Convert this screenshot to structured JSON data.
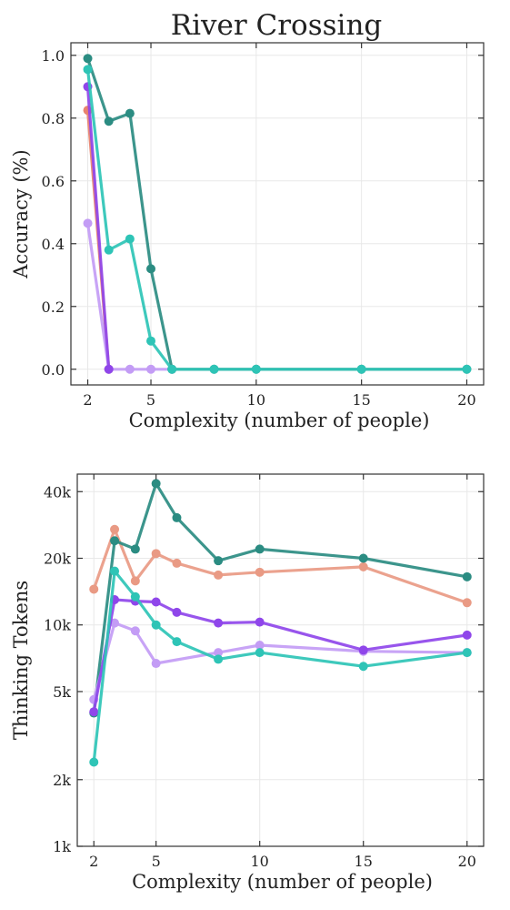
{
  "title": "River Crossing",
  "chart_data": [
    {
      "type": "line",
      "title": "River Crossing",
      "xlabel": "Complexity (number of people)",
      "ylabel": "Accuracy (%)",
      "xlim": [
        1.2,
        20.8
      ],
      "ylim": [
        -0.05,
        1.04
      ],
      "xticks": [
        2,
        5,
        10,
        15,
        20
      ],
      "yticks": [
        0.0,
        0.2,
        0.4,
        0.6,
        0.8,
        1.0
      ],
      "ytick_labels": [
        "0.0",
        "0.2",
        "0.4",
        "0.6",
        "0.8",
        "1.0"
      ],
      "grid": true,
      "series": [
        {
          "color": "#e8826f",
          "x": [
            2,
            3
          ],
          "y": [
            0.825,
            0.0
          ]
        },
        {
          "color": "#c39cf5",
          "x": [
            2,
            3,
            4,
            5,
            6
          ],
          "y": [
            0.465,
            0.0,
            0.0,
            0.0,
            0.0
          ]
        },
        {
          "color": "#8f46ea",
          "x": [
            2,
            3
          ],
          "y": [
            0.9,
            0.0
          ]
        },
        {
          "color": "#2b8c82",
          "x": [
            2,
            3,
            4,
            5,
            6,
            8,
            10,
            15,
            20
          ],
          "y": [
            0.99,
            0.79,
            0.815,
            0.32,
            0.0,
            0.0,
            0.0,
            0.0,
            0.0
          ]
        },
        {
          "color": "#2ec4b6",
          "x": [
            2,
            3,
            4,
            5,
            6,
            8,
            10,
            15,
            20
          ],
          "y": [
            0.955,
            0.38,
            0.415,
            0.09,
            0.0,
            0.0,
            0.0,
            0.0,
            0.0
          ]
        }
      ]
    },
    {
      "type": "line",
      "xlabel": "Complexity (number of people)",
      "ylabel": "Thinking Tokens",
      "yscale": "log",
      "xlim": [
        1.2,
        20.8
      ],
      "ylim": [
        1000,
        48000
      ],
      "xticks": [
        2,
        5,
        10,
        15,
        20
      ],
      "yticks": [
        1000,
        2000,
        5000,
        10000,
        20000,
        40000
      ],
      "ytick_labels": [
        "1k",
        "2k",
        "5k",
        "10k",
        "20k",
        "40k"
      ],
      "grid": true,
      "series": [
        {
          "color": "#e99a84",
          "x": [
            2,
            3,
            4,
            5,
            6,
            8,
            10,
            15,
            20
          ],
          "y": [
            14500,
            27000,
            15800,
            21000,
            19000,
            16800,
            17300,
            18300,
            12600
          ]
        },
        {
          "color": "#2b8c82",
          "x": [
            2,
            3,
            4,
            5,
            6,
            8,
            10,
            15,
            20
          ],
          "y": [
            4000,
            24000,
            22000,
            43500,
            30500,
            19500,
            22000,
            20000,
            16500
          ]
        },
        {
          "color": "#c39cf5",
          "x": [
            2,
            3,
            4,
            5,
            6,
            8,
            10,
            15,
            20
          ],
          "y": [
            4600,
            10200,
            9400,
            6700,
            null,
            7500,
            8100,
            7600,
            7500
          ]
        },
        {
          "color": "#8f46ea",
          "x": [
            2,
            3,
            4,
            5,
            6,
            8,
            10,
            15,
            20
          ],
          "y": [
            4050,
            13000,
            12800,
            12700,
            11400,
            10200,
            10300,
            7700,
            9000
          ]
        },
        {
          "color": "#2ec4b6",
          "x": [
            2,
            3,
            4,
            5,
            6,
            8,
            10,
            15,
            20
          ],
          "y": [
            2400,
            17500,
            13400,
            10000,
            8400,
            7000,
            7500,
            6500,
            7500
          ]
        }
      ]
    }
  ]
}
